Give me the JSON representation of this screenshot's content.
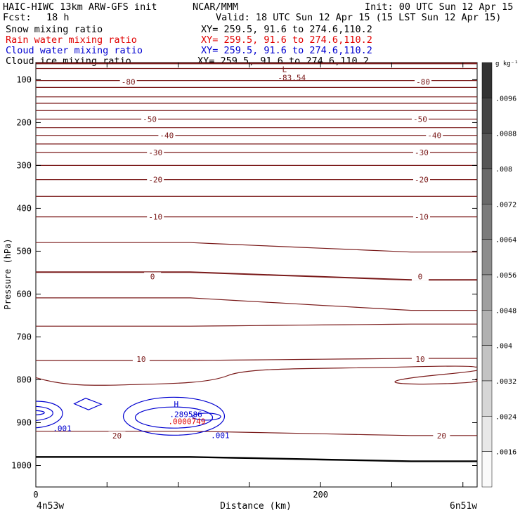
{
  "header": {
    "model": "HAIC-HIWC 13km ARW-GFS init",
    "org": "NCAR/MMM",
    "init": "Init: 00 UTC Sun 12 Apr 15",
    "fcst_label": "Fcst:",
    "fcst_value": "18 h",
    "valid": "Valid: 18 UTC Sun 12 Apr 15 (15 LST Sun 12 Apr 15)",
    "fields": [
      {
        "name": "Snow mixing ratio",
        "xy": "XY= 259.5, 91.6 to 274.6,110.2",
        "color": "#000000"
      },
      {
        "name": "Rain water mixing ratio",
        "xy": "XY= 259.5, 91.6 to 274.6,110.2",
        "color": "#e00000"
      },
      {
        "name": "Cloud water mixing ratio",
        "xy": "XY= 259.5, 91.6 to 274.6,110.2",
        "color": "#0000d0"
      },
      {
        "name": "Cloud ice mixing ratio",
        "xy": "XY= 259.5, 91.6 to 274.6,110.2",
        "color": "#000000"
      }
    ]
  },
  "footer": {
    "left_point": "4n53w",
    "right_point": "6n51w"
  },
  "chart_data": {
    "type": "contour",
    "xlabel": "Distance (km)",
    "ylabel": "Pressure (hPa)",
    "xlim": [
      0,
      310
    ],
    "ylim": [
      1050,
      60
    ],
    "x_ticks": [
      0,
      200
    ],
    "x_minor_step": 50,
    "y_ticks": [
      100,
      200,
      300,
      400,
      500,
      600,
      700,
      800,
      900,
      1000
    ],
    "temperature_contours": {
      "color": "#7a1a1a",
      "labels": [
        {
          "value": "-80",
          "p": 105,
          "x": [
            65,
            272
          ]
        },
        {
          "value": "-50",
          "p": 192,
          "x": [
            80,
            270
          ]
        },
        {
          "value": "-40",
          "p": 230,
          "x": [
            92,
            280
          ]
        },
        {
          "value": "-30",
          "p": 270,
          "x": [
            84,
            271
          ]
        },
        {
          "value": "-20",
          "p": 333,
          "x": [
            84,
            271
          ]
        },
        {
          "value": "-10",
          "p": 420,
          "x": [
            84,
            271
          ]
        },
        {
          "value": "0",
          "p": 559,
          "x": [
            82,
            270
          ]
        },
        {
          "value": "10",
          "p": 752,
          "x": [
            74,
            270
          ]
        },
        {
          "value": "20",
          "p": 930,
          "x": [
            57,
            285
          ]
        }
      ],
      "levels_left": [
        62,
        74,
        102,
        118,
        140,
        155,
        172,
        192,
        212,
        230,
        250,
        270,
        300,
        333,
        372,
        420,
        480,
        549,
        609,
        675,
        755,
        920,
        980
      ],
      "levels_right": [
        62,
        74,
        102,
        118,
        140,
        155,
        172,
        192,
        212,
        230,
        250,
        270,
        300,
        333,
        372,
        420,
        502,
        567,
        638,
        670,
        750,
        930,
        990
      ]
    },
    "annotations": [
      {
        "text": "L",
        "x": 173,
        "p": 82,
        "color": "#7a1a1a"
      },
      {
        "text": "-83.54",
        "x": 170,
        "p": 102,
        "color": "#7a1a1a"
      },
      {
        "text": "H",
        "x": 97,
        "p": 863,
        "color": "#0000d0"
      },
      {
        "text": ".289586",
        "x": 94,
        "p": 887,
        "color": "#0000d0"
      },
      {
        "text": ".0000749",
        "x": 93,
        "p": 903,
        "color": "#e00000"
      },
      {
        "text": ".001",
        "x": 12,
        "p": 920,
        "color": "#0000d0"
      },
      {
        "text": ".001",
        "x": 123,
        "p": 936,
        "color": "#0000d0"
      }
    ],
    "colorbar": {
      "unit": "g kg⁻¹",
      "labels": [
        ".0096",
        ".0088",
        ".008",
        ".0072",
        ".0064",
        ".0056",
        ".0048",
        ".004",
        ".0032",
        ".0024",
        ".0016"
      ]
    }
  }
}
